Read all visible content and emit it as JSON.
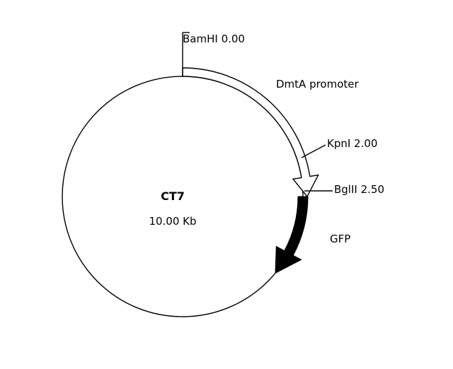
{
  "plasmid": {
    "name": "CT7",
    "size_label": "10.00 Kb",
    "size_kb": 10.0
  },
  "sites": [
    {
      "label": "BamHI 0.00",
      "position_kb": 0.0
    },
    {
      "label": "KpnI 2.00",
      "position_kb": 2.0
    },
    {
      "label": "BglII 2.50",
      "position_kb": 2.5
    }
  ],
  "features": [
    {
      "label": "DmtA promoter",
      "start_kb": 0.0,
      "end_kb": 2.5,
      "style": "open-arrow"
    },
    {
      "label": "GFP",
      "start_kb": 2.5,
      "end_kb": 3.6,
      "style": "filled-arrow"
    }
  ],
  "colors": {
    "line": "#000000",
    "background": "#ffffff",
    "open_fill": "#ffffff",
    "solid_fill": "#000000"
  }
}
